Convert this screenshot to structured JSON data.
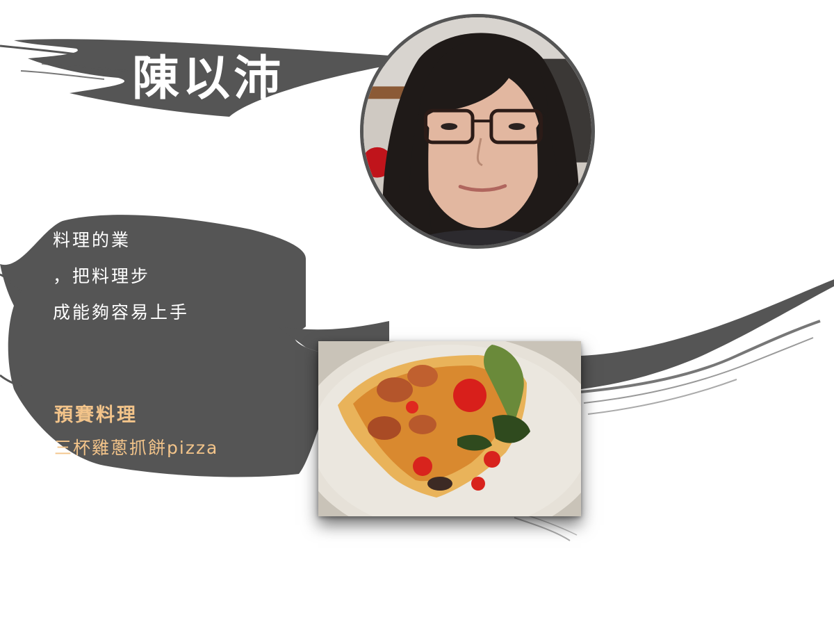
{
  "profile": {
    "name": "陳以沛",
    "bio_lines": [
      "料理的業",
      "，把料理步",
      "成能夠容易上手"
    ]
  },
  "entry": {
    "section_label": "預賽料理",
    "dish_name": "三杯雞蔥抓餅pizza"
  },
  "colors": {
    "brush": "#555555",
    "accent": "#f3c48a",
    "text_on_brush": "#ffffff"
  }
}
